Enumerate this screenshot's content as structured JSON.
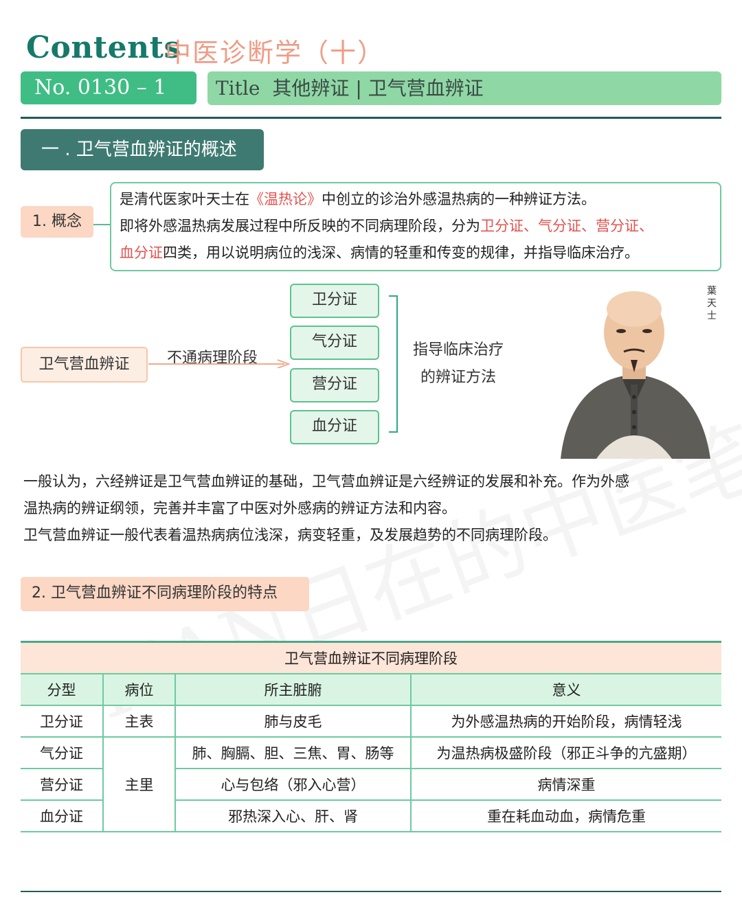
{
  "header": {
    "contents": "Contents",
    "subject": "中医诊断学（十）",
    "number": "No. 0130 – 1",
    "title_word": "Title",
    "title_text": "其他辨证 | 卫气营血辨证"
  },
  "section1": {
    "heading": "一 . 卫气营血辨证的概述",
    "concept_tag": "1.   概念",
    "line1_a": "是清代医家叶天士在",
    "line1_b": "《温热论》",
    "line1_c": "中创立的诊治外感温热病的一种辨证方法。",
    "line2_a": "即将外感温热病发展过程中所反映的不同病理阶段，分为",
    "line2_b": "卫分证、气分证、营分证、",
    "line3_a": "血分证",
    "line3_b": "四类，用以说明病位的浅深、病情的轻重和传变的规律，并指导临床治疗。"
  },
  "diagram": {
    "source": "卫气营血辨证",
    "arrow_label": "不通病理阶段",
    "stages": [
      "卫分证",
      "气分证",
      "营分证",
      "血分证"
    ],
    "guide_line1": "指导临床治疗",
    "guide_line2": "的辨证方法",
    "portrait_name": "葉天士"
  },
  "paragraphs": {
    "p1": "一般认为，六经辨证是卫气营血辨证的基础，卫气营血辨证是六经辨证的发展和补充。作为外感",
    "p2": "温热病的辨证纲领，完善并丰富了中医对外感病的辨证方法和内容。",
    "p3": "卫气营血辨证一般代表着温热病病位浅深，病变轻重，及发展趋势的不同病理阶段。"
  },
  "section2": {
    "heading": "2.   卫气营血辨证不同病理阶段的特点"
  },
  "table": {
    "caption": "卫气营血辨证不同病理阶段",
    "headers": [
      "分型",
      "病位",
      "所主脏腑",
      "意义"
    ],
    "rows": [
      {
        "type": "卫分证",
        "location": "主表",
        "organs": "肺与皮毛",
        "meaning": "为外感温热病的开始阶段，病情轻浅"
      },
      {
        "type": "气分证",
        "location": "主里",
        "organs": "肺、胸膈、胆、三焦、胃、肠等",
        "meaning": "为温热病极盛阶段（邪正斗争的亢盛期）"
      },
      {
        "type": "营分证",
        "organs": "心与包络（邪入心营）",
        "meaning": "病情深重"
      },
      {
        "type": "血分证",
        "organs": "邪热深入心、肝、肾",
        "meaning": "重在耗血动血，病情危重"
      }
    ]
  },
  "watermark": "TIAN日在的中医笔",
  "colors": {
    "brand_green": "#16796a",
    "accent_pink": "#ef9c86",
    "highlight_red": "#e4524e",
    "table_line": "#6ccaa0"
  }
}
